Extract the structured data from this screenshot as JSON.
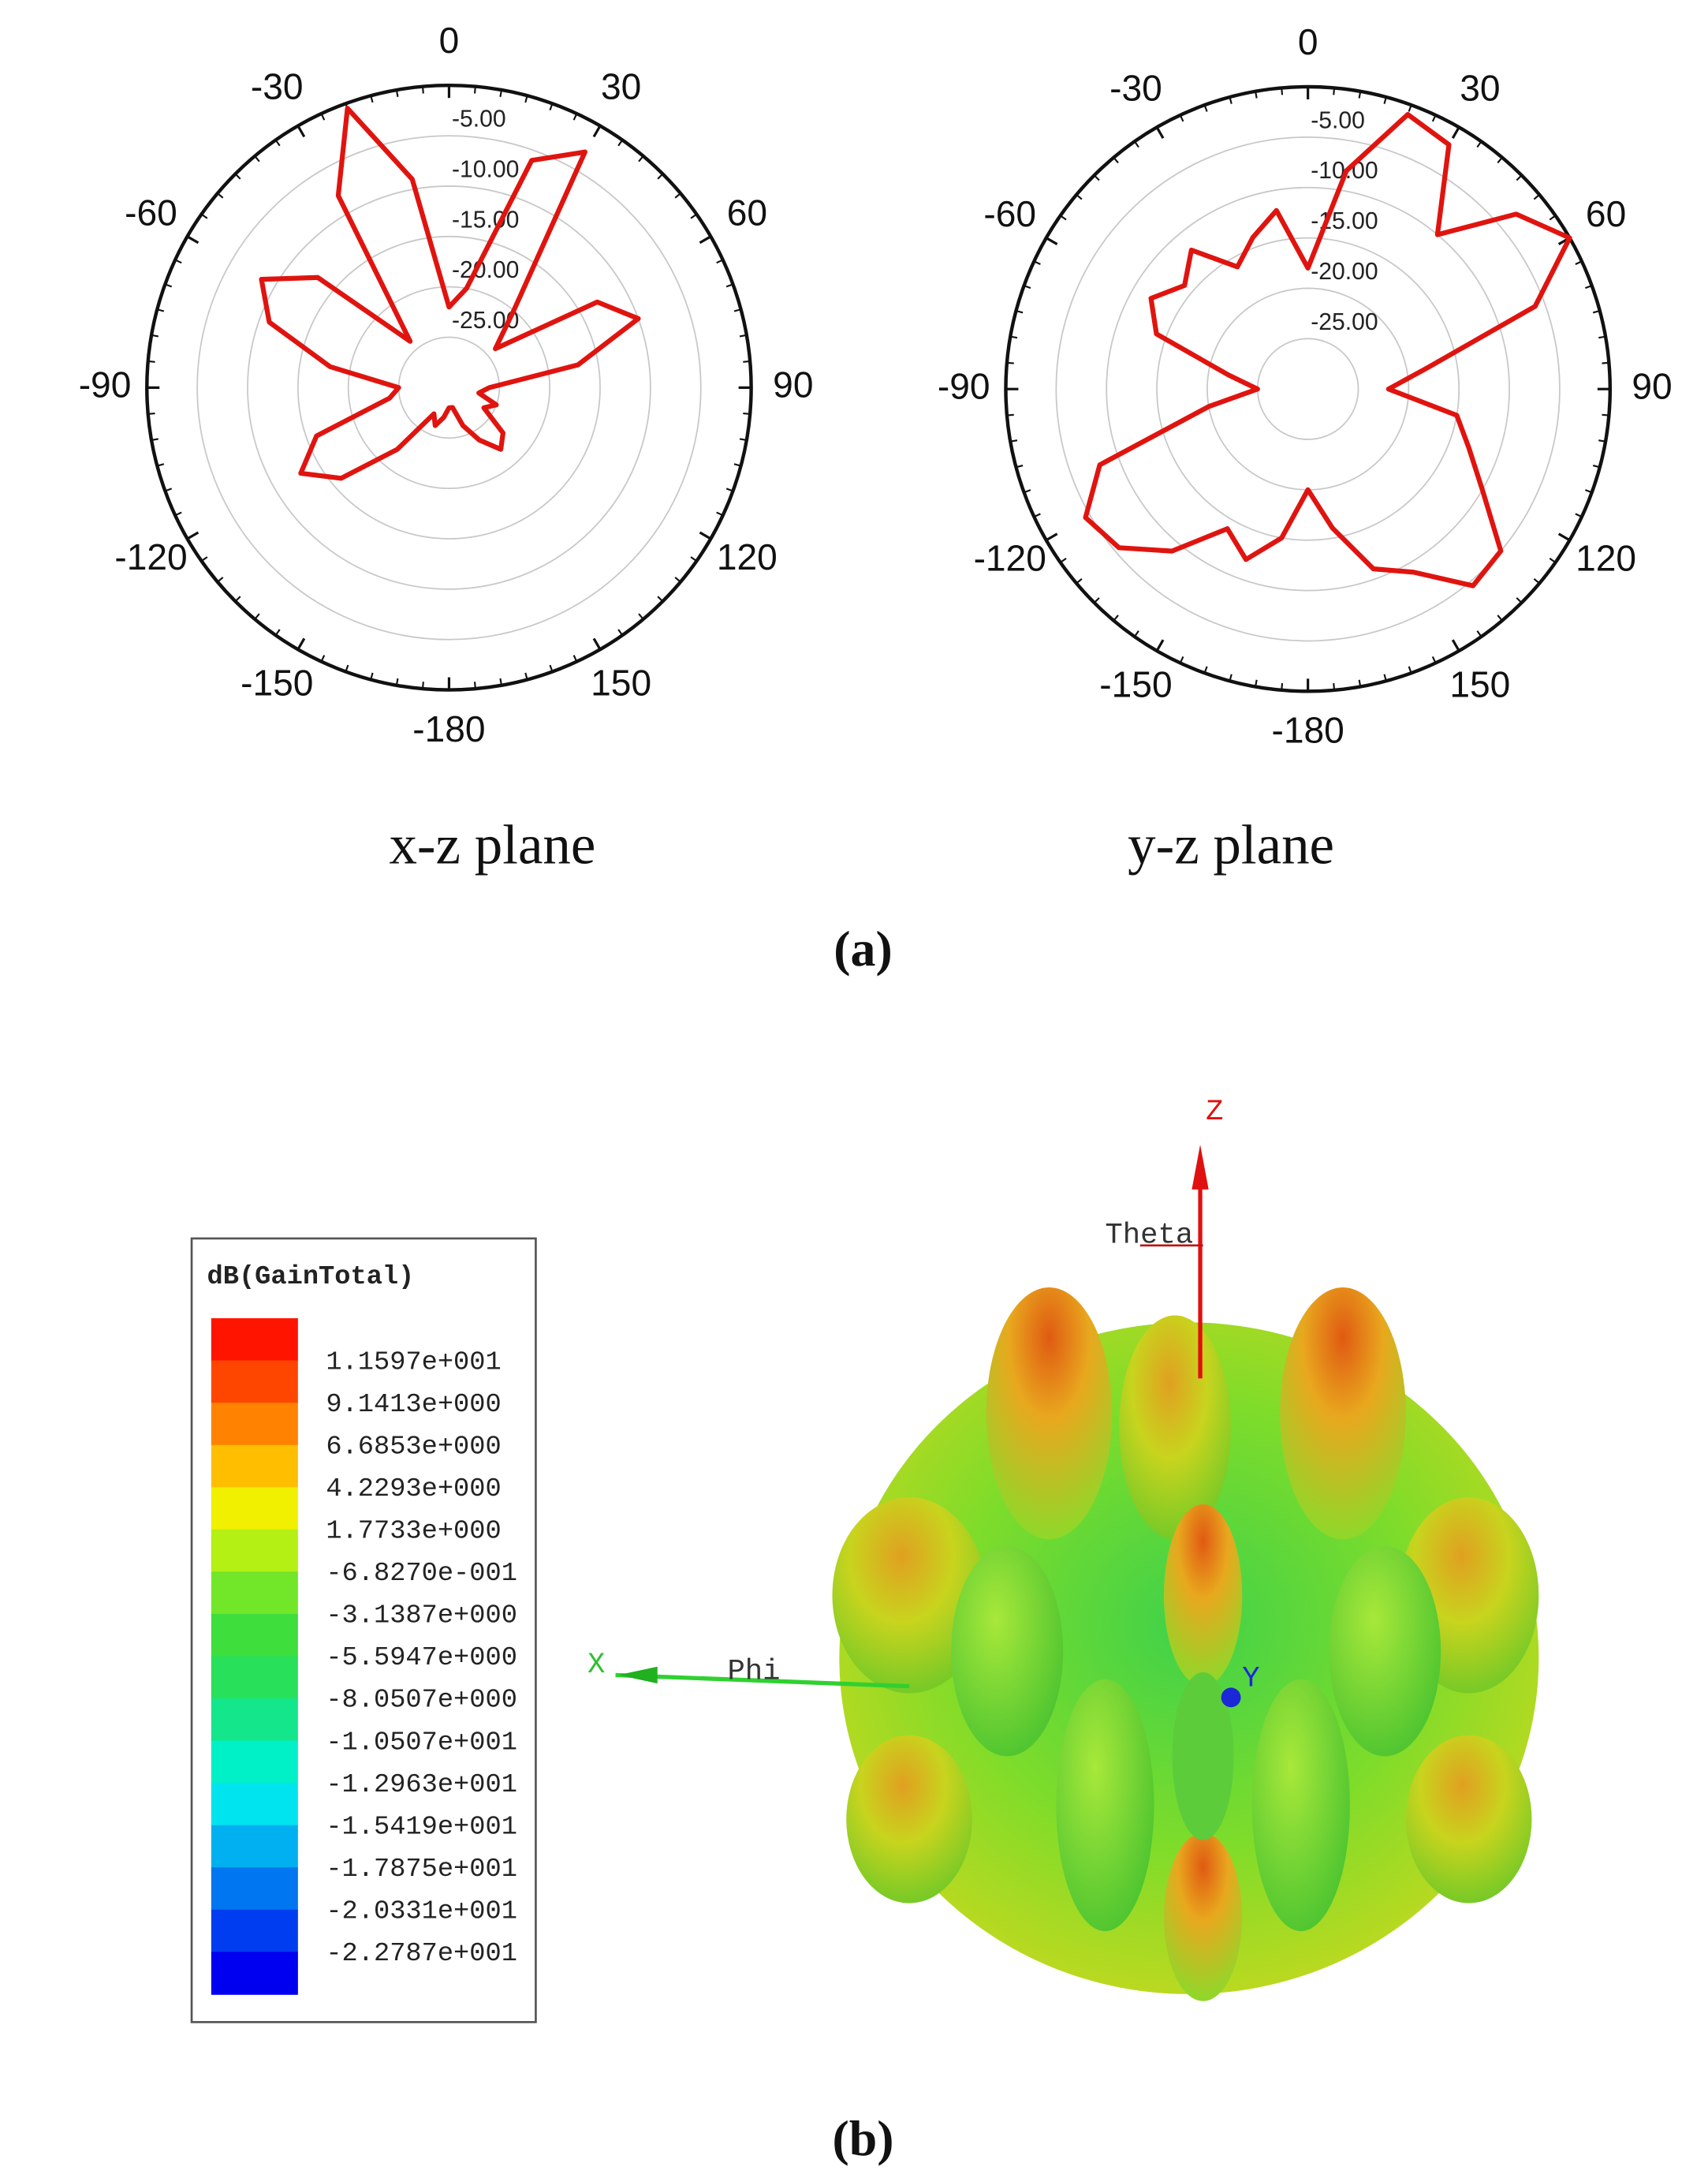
{
  "chart_data": [
    {
      "type": "polar",
      "title": "x-z plane",
      "x": [
        -180,
        -170,
        -160,
        -150,
        -140,
        -130,
        -120,
        -110,
        -100,
        -90,
        -80,
        -70,
        -60,
        -50,
        -40,
        -30,
        -20,
        -10,
        0,
        10,
        20,
        30,
        40,
        50,
        60,
        70,
        80,
        90,
        100,
        110,
        120,
        130,
        140,
        150,
        160,
        170
      ],
      "values": [
        -28,
        -27,
        -26,
        -27,
        -22,
        -16,
        -13,
        -16,
        -24,
        -25,
        -18,
        -11,
        -8.5,
        -13,
        -24,
        -8,
        -0.5,
        -9,
        -22,
        -20,
        -6,
        -3,
        -20,
        -24,
        -13,
        -10,
        -17,
        -26,
        -27,
        -25,
        -26,
        -23,
        -22,
        -24,
        -26,
        -28
      ],
      "color": "#e0140f",
      "xticks": [
        0,
        30,
        60,
        90,
        120,
        150,
        -180,
        -150,
        -120,
        -90,
        -60,
        -30
      ],
      "ylim": [
        -30,
        0
      ],
      "yticks": [
        {
          "value": -5,
          "label": "-5.00"
        },
        {
          "value": -10,
          "label": "-10.00"
        },
        {
          "value": -15,
          "label": "-15.00"
        },
        {
          "value": -20,
          "label": "-20.00"
        },
        {
          "value": -25,
          "label": "-25.00"
        }
      ]
    },
    {
      "type": "polar",
      "title": "y-z plane",
      "x": [
        -180,
        -170,
        -160,
        -150,
        -140,
        -130,
        -120,
        -110,
        -100,
        -90,
        -80,
        -70,
        -60,
        -50,
        -40,
        -30,
        -20,
        -10,
        0,
        10,
        20,
        30,
        40,
        50,
        60,
        70,
        80,
        90,
        100,
        110,
        120,
        130,
        140,
        150,
        160,
        170
      ],
      "values": [
        -20,
        -15,
        -12,
        -14,
        -9,
        -5.5,
        -4.5,
        -8,
        -20,
        -25,
        -22,
        -14,
        -12,
        -14,
        -12,
        -16,
        -14,
        -12,
        -18,
        -8,
        -1,
        -2,
        -10,
        -3,
        0,
        -6,
        -18,
        -22,
        -15,
        -13,
        -10,
        -5,
        -4.5,
        -9,
        -11,
        -16
      ],
      "color": "#e0140f",
      "xticks": [
        0,
        30,
        60,
        90,
        120,
        150,
        -180,
        -150,
        -120,
        -90,
        -60,
        -30
      ],
      "ylim": [
        -30,
        0
      ],
      "yticks": [
        {
          "value": -5,
          "label": "-5.00"
        },
        {
          "value": -10,
          "label": "-10.00"
        },
        {
          "value": -15,
          "label": "-15.00"
        },
        {
          "value": -20,
          "label": "-20.00"
        },
        {
          "value": -25,
          "label": "-25.00"
        }
      ]
    }
  ],
  "panels": [
    "(a)",
    "(b)"
  ],
  "legend": {
    "title": "dB(GainTotal)",
    "colors": [
      "#ff1400",
      "#ff4600",
      "#ff8200",
      "#ffbe00",
      "#f0f000",
      "#b4f014",
      "#72e628",
      "#3ede3c",
      "#28e05a",
      "#14e68c",
      "#00f0c8",
      "#00e4f0",
      "#00b0f0",
      "#0076f0",
      "#003cf0",
      "#0000f0"
    ],
    "ticks": [
      {
        "value": 11.597,
        "label": "1.1597e+001"
      },
      {
        "value": 9.1413,
        "label": "9.1413e+000"
      },
      {
        "value": 6.6853,
        "label": "6.6853e+000"
      },
      {
        "value": 4.2293,
        "label": "4.2293e+000"
      },
      {
        "value": 1.7733,
        "label": "1.7733e+000"
      },
      {
        "value": -0.6827,
        "label": "-6.8270e-001"
      },
      {
        "value": -3.1387,
        "label": "-3.1387e+000"
      },
      {
        "value": -5.5947,
        "label": "-5.5947e+000"
      },
      {
        "value": -8.0507,
        "label": "-8.0507e+000"
      },
      {
        "value": -10.507,
        "label": "-1.0507e+001"
      },
      {
        "value": -12.963,
        "label": "-1.2963e+001"
      },
      {
        "value": -15.419,
        "label": "-1.5419e+001"
      },
      {
        "value": -17.875,
        "label": "-1.7875e+001"
      },
      {
        "value": -20.331,
        "label": "-2.0331e+001"
      },
      {
        "value": -22.787,
        "label": "-2.2787e+001"
      }
    ]
  },
  "pattern_3d": {
    "axis_labels": [
      "Z",
      "Theta",
      "X",
      "Phi",
      "Y"
    ]
  }
}
